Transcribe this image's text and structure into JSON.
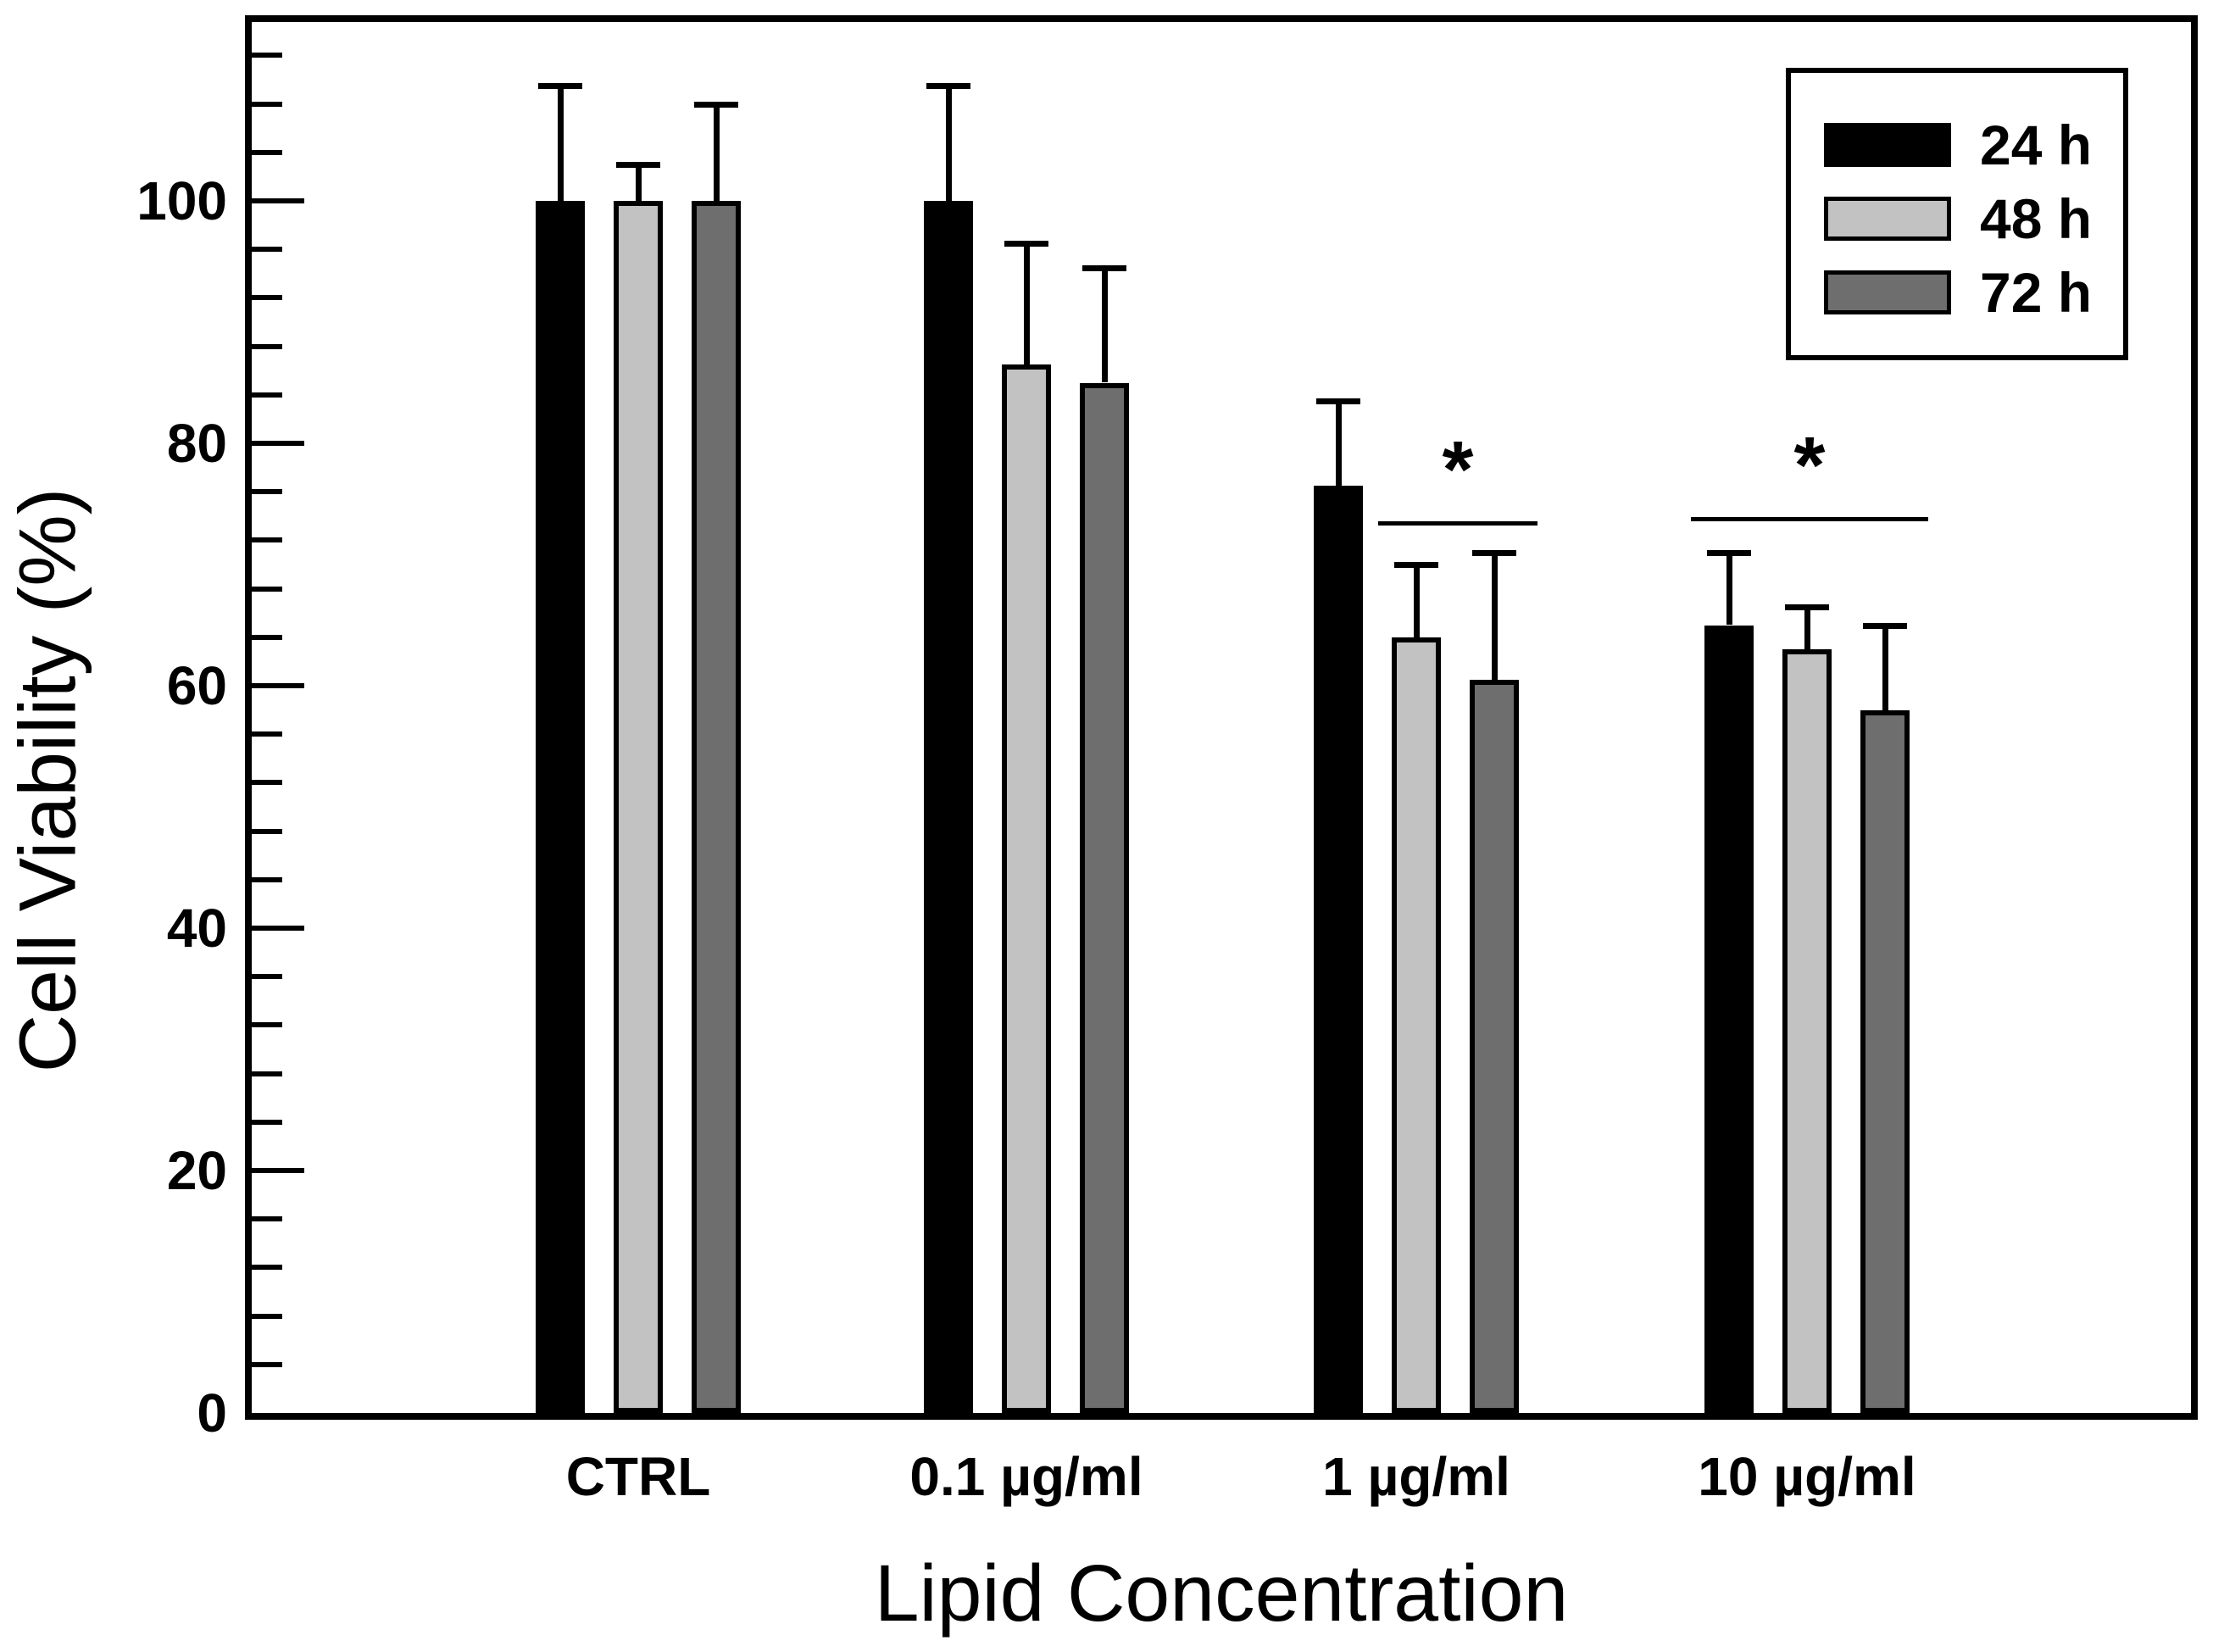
{
  "chart_data": {
    "type": "bar",
    "title": "",
    "xlabel": "Lipid Concentration",
    "ylabel": "Cell Viability (%)",
    "categories": [
      "CTRL",
      "0.1 µg/ml",
      "1 µg/ml",
      "10 µg/ml"
    ],
    "series": [
      {
        "name": "24 h",
        "color": "#000000",
        "values": [
          100,
          100,
          76.5,
          65
        ],
        "errors_plus": [
          9.5,
          9.5,
          7,
          6
        ]
      },
      {
        "name": "48 h",
        "color": "#c2c2c2",
        "values": [
          100,
          86.5,
          64,
          63
        ],
        "errors_plus": [
          3,
          10,
          6,
          3.5
        ]
      },
      {
        "name": "72 h",
        "color": "#6e6e6e",
        "values": [
          100,
          85,
          60.5,
          58
        ],
        "errors_plus": [
          8,
          9.5,
          10.5,
          7
        ]
      }
    ],
    "ylim": [
      0,
      115
    ],
    "yticks": [
      0,
      20,
      40,
      60,
      80,
      100
    ],
    "minor_tick_step": 4,
    "grid": false,
    "legend": {
      "position": "top-right",
      "entries": [
        "24 h",
        "48 h",
        "72 h"
      ]
    },
    "annotations": [
      {
        "type": "significance",
        "label": "*",
        "category_index": 2,
        "bars": [
          1,
          2
        ],
        "y_value": 73.6
      },
      {
        "type": "significance",
        "label": "*",
        "category_index": 3,
        "bars": [
          0,
          1,
          2
        ],
        "y_value": 73.9
      }
    ],
    "bar_colors_note": {
      "black": "#000000",
      "light_gray": "#c2c2c2",
      "dark_gray": "#6e6e6e"
    }
  }
}
